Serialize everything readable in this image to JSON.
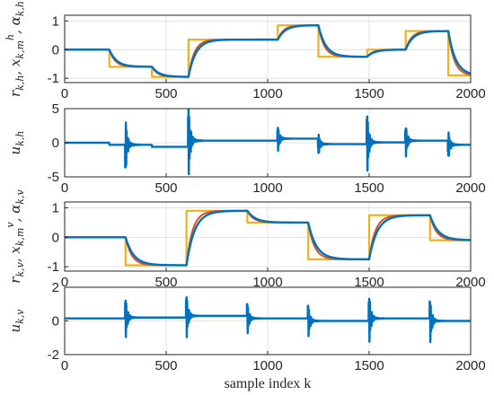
{
  "figure": {
    "xlabel": "sample index k",
    "colors": {
      "reference": "#EDB120",
      "model": "#D95319",
      "output": "#0072BD",
      "input": "#0072BD"
    }
  },
  "chart_data": [
    {
      "type": "line",
      "ylabel": "r_{k,h}, x^h_{k,m}, α_{k,h}",
      "ylabel_parts": [
        "r",
        "k,h",
        ", x",
        "k,m",
        "h",
        ", α",
        "k,h"
      ],
      "xlim": [
        0,
        2000
      ],
      "ylim": [
        -1.15,
        1.2
      ],
      "xticks": [
        0,
        500,
        1000,
        1500,
        2000
      ],
      "xtick_labels": [
        "0",
        "500",
        "1000",
        "1500",
        "2000"
      ],
      "yticks": [
        -1,
        0,
        1
      ],
      "ytick_labels": [
        "-1",
        "0",
        "1"
      ],
      "grid": true,
      "steps": [
        [
          0,
          0
        ],
        [
          220,
          -0.6
        ],
        [
          430,
          -0.95
        ],
        [
          610,
          0.35
        ],
        [
          1050,
          0.85
        ],
        [
          1250,
          -0.25
        ],
        [
          1490,
          0.0
        ],
        [
          1680,
          0.65
        ],
        [
          1890,
          -0.9
        ],
        [
          2000,
          -0.9
        ]
      ],
      "series": [
        {
          "role": "reference",
          "tau": 0
        },
        {
          "role": "model",
          "tau": 28
        },
        {
          "role": "output",
          "tau": 36
        }
      ]
    },
    {
      "type": "line",
      "ylabel": "u_{k,h}",
      "ylabel_parts": [
        "u",
        "k,h"
      ],
      "xlim": [
        0,
        2000
      ],
      "ylim": [
        -5,
        5
      ],
      "xticks": [
        0,
        500,
        1000,
        1500,
        2000
      ],
      "xtick_labels": [
        "0",
        "500",
        "1000",
        "1500",
        "2000"
      ],
      "yticks": [
        -5,
        0,
        5
      ],
      "ytick_labels": [
        "-5",
        "0",
        "5"
      ],
      "grid": true,
      "baseline": [
        [
          0,
          0.0
        ],
        [
          220,
          -0.3
        ],
        [
          430,
          -0.6
        ],
        [
          610,
          0.3
        ],
        [
          1050,
          0.6
        ],
        [
          1250,
          -0.2
        ],
        [
          1490,
          0.05
        ],
        [
          1680,
          0.3
        ],
        [
          1890,
          -0.3
        ],
        [
          2000,
          -0.3
        ]
      ],
      "bursts": [
        [
          300,
          -3.3,
          2.0
        ],
        [
          610,
          4.3,
          -3.0
        ],
        [
          1050,
          1.5,
          -1.2
        ],
        [
          1250,
          -1.3,
          1.0
        ],
        [
          1490,
          3.6,
          -2.6
        ],
        [
          1680,
          1.7,
          -2.1
        ],
        [
          1890,
          -1.6,
          1.5
        ]
      ],
      "series": [
        {
          "role": "input"
        }
      ]
    },
    {
      "type": "line",
      "ylabel": "r_{k,v}, x^v_{k,m}, α_{k,v}",
      "ylabel_parts": [
        "r",
        "k,v",
        ", x",
        "k,m",
        "v",
        ", α",
        "k,v"
      ],
      "xlim": [
        0,
        2000
      ],
      "ylim": [
        -1.15,
        1.2
      ],
      "xticks": [
        0,
        500,
        1000,
        1500,
        2000
      ],
      "xtick_labels": [
        "0",
        "500",
        "1000",
        "1500",
        "2000"
      ],
      "yticks": [
        -1,
        0,
        1
      ],
      "ytick_labels": [
        "-1",
        "0",
        "1"
      ],
      "grid": true,
      "steps": [
        [
          0,
          0
        ],
        [
          300,
          -0.95
        ],
        [
          600,
          0.9
        ],
        [
          900,
          0.5
        ],
        [
          1200,
          -0.75
        ],
        [
          1500,
          0.75
        ],
        [
          1800,
          -0.1
        ],
        [
          2000,
          -0.1
        ]
      ],
      "series": [
        {
          "role": "reference",
          "tau": 0
        },
        {
          "role": "model",
          "tau": 30
        },
        {
          "role": "output",
          "tau": 40
        }
      ]
    },
    {
      "type": "line",
      "ylabel": "u_{k,v}",
      "ylabel_parts": [
        "u",
        "k,v"
      ],
      "xlim": [
        0,
        2000
      ],
      "ylim": [
        -2,
        2
      ],
      "xticks": [
        0,
        500,
        1000,
        1500,
        2000
      ],
      "xtick_labels": [
        "0",
        "500",
        "1000",
        "1500",
        "2000"
      ],
      "yticks": [
        -2,
        0,
        2
      ],
      "ytick_labels": [
        "-2",
        "0",
        "2"
      ],
      "grid": true,
      "baseline": [
        [
          0,
          0.15
        ],
        [
          300,
          0.2
        ],
        [
          600,
          0.3
        ],
        [
          900,
          0.15
        ],
        [
          1200,
          0.0
        ],
        [
          1500,
          0.15
        ],
        [
          1800,
          0.0
        ],
        [
          2000,
          0.0
        ]
      ],
      "bursts": [
        [
          300,
          0.95,
          -0.85
        ],
        [
          600,
          1.05,
          -0.9
        ],
        [
          900,
          0.7,
          -0.7
        ],
        [
          1200,
          0.75,
          -0.65
        ],
        [
          1500,
          1.1,
          -1.1
        ],
        [
          1800,
          1.0,
          -1.0
        ]
      ],
      "series": [
        {
          "role": "input"
        }
      ]
    }
  ]
}
